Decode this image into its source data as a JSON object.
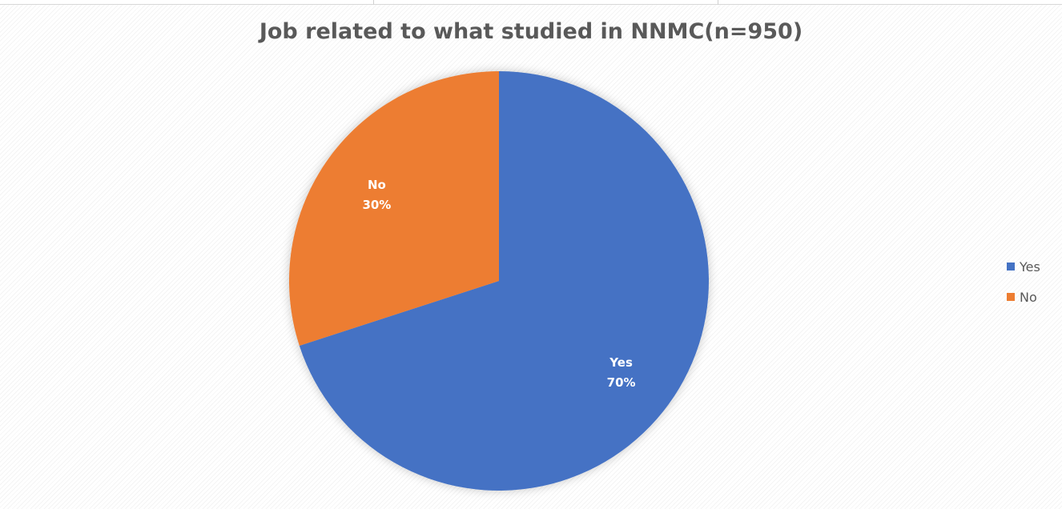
{
  "chart_data": {
    "type": "pie",
    "title": "Job related to what studied in NNMC(n=950)",
    "categories": [
      "Yes",
      "No"
    ],
    "values": [
      70,
      30
    ],
    "labels": [
      "70%",
      "30%"
    ],
    "colors": [
      "#4472c4",
      "#ed7d31"
    ],
    "legend": {
      "placement": "right",
      "entries": [
        "Yes",
        "No"
      ]
    }
  }
}
